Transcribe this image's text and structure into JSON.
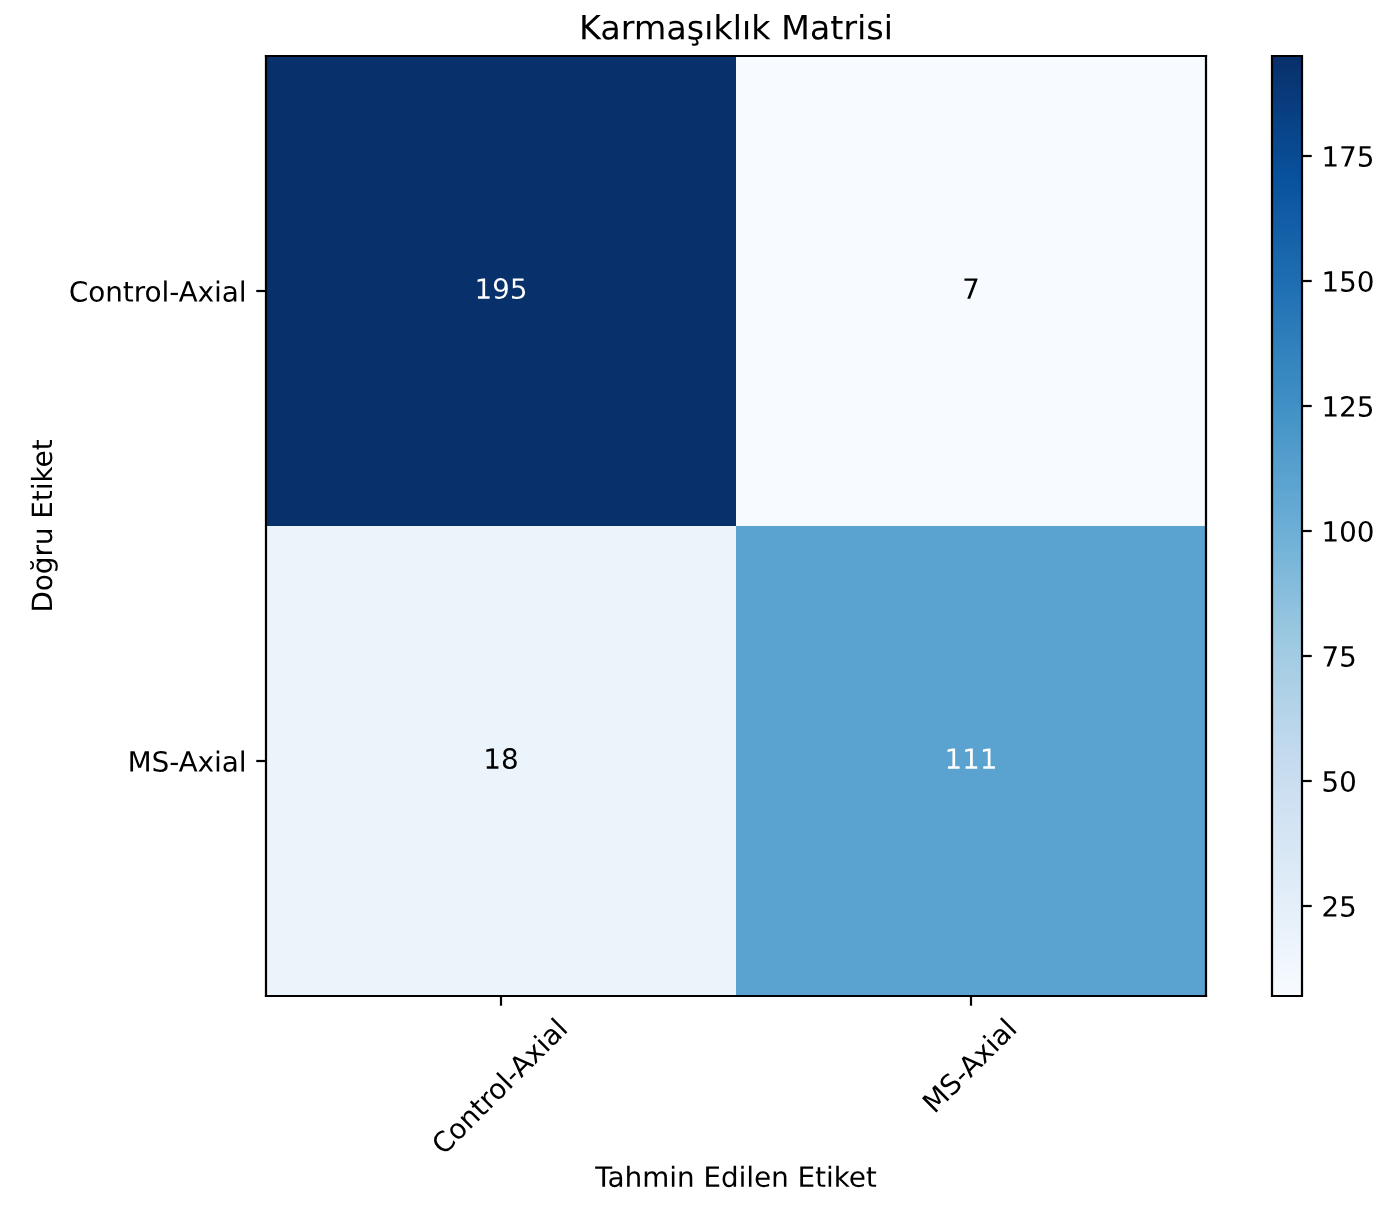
{
  "chart_data": {
    "type": "heatmap",
    "title": "Karmaşıklık Matrisi",
    "xlabel": "Tahmin Edilen Etiket",
    "ylabel": "Doğru Etiket",
    "categories": [
      "Control-Axial",
      "MS-Axial"
    ],
    "y_categories": [
      "Control-Axial",
      "MS-Axial"
    ],
    "cells": [
      [
        195,
        7
      ],
      [
        18,
        111
      ]
    ],
    "data_labels": true,
    "clim": [
      7,
      195
    ],
    "cticks": [
      25,
      50,
      75,
      100,
      125,
      150,
      175
    ],
    "grid": false
  }
}
